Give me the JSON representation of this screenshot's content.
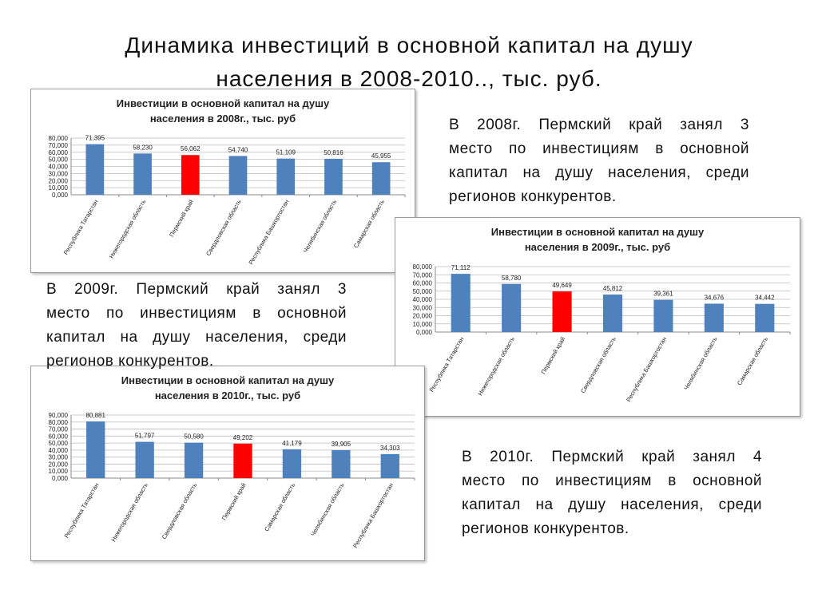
{
  "title": {
    "line1": "Динамика инвестиций в основной капитал на душу",
    "line2": "населения в 2008-2010.., тыс. руб."
  },
  "chart_data": [
    {
      "type": "bar",
      "title_line1": "Инвестиции в основной капитал на душу",
      "title_line2": "населения в 2008г., тыс. руб",
      "categories": [
        "Республика Татарстан",
        "Нижегородская область",
        "Пермский край",
        "Свердловская область",
        "Республика Башкортостан",
        "Челябинская область",
        "Самарская область"
      ],
      "values": [
        71.395,
        58.23,
        56.062,
        54.74,
        51.109,
        50.816,
        45.955
      ],
      "value_labels": [
        "71,395",
        "58,230",
        "56,062",
        "54,740",
        "51,109",
        "50,816",
        "45,955"
      ],
      "yticks": [
        "0,000",
        "10,000",
        "20,000",
        "30,000",
        "40,000",
        "50,000",
        "60,000",
        "70,000",
        "80,000"
      ],
      "ylim": [
        0,
        80
      ],
      "grid": true,
      "highlight_index": 2,
      "bar_color": "#4f81bd",
      "highlight_color": "#ff0000"
    },
    {
      "type": "bar",
      "title_line1": "Инвестиции в основной капитал на душу",
      "title_line2": "населения в 2009г., тыс. руб",
      "categories": [
        "Республика Татарстан",
        "Нижегородская область",
        "Пермский край",
        "Свердловская область",
        "Республика Башкортостан",
        "Челябинская область",
        "Самарская область"
      ],
      "values": [
        71.112,
        58.78,
        49.649,
        45.812,
        39.361,
        34.676,
        34.442
      ],
      "value_labels": [
        "71,112",
        "58,780",
        "49,649",
        "45,812",
        "39,361",
        "34,676",
        "34,442"
      ],
      "yticks": [
        "0,000",
        "10,000",
        "20,000",
        "30,000",
        "40,000",
        "50,000",
        "60,000",
        "70,000",
        "80,000"
      ],
      "ylim": [
        0,
        80
      ],
      "grid": true,
      "highlight_index": 2,
      "bar_color": "#4f81bd",
      "highlight_color": "#ff0000"
    },
    {
      "type": "bar",
      "title_line1": "Инвестиции в основной капитал на душу",
      "title_line2": "населения в 2010г., тыс. руб",
      "categories": [
        "Республика Татарстан",
        "Нижегородская область",
        "Свердловская область",
        "Пермский край",
        "Самарская область",
        "Челябинская область",
        "Республика Башкортостан"
      ],
      "values": [
        80.881,
        51.797,
        50.58,
        49.202,
        41.179,
        39.905,
        34.303
      ],
      "value_labels": [
        "80,881",
        "51,797",
        "50,580",
        "49,202",
        "41,179",
        "39,905",
        "34,303"
      ],
      "yticks": [
        "0,000",
        "10,000",
        "20,000",
        "30,000",
        "40,000",
        "50,000",
        "60,000",
        "70,000",
        "80,000",
        "90,000"
      ],
      "ylim": [
        0,
        90
      ],
      "grid": true,
      "highlight_index": 3,
      "bar_color": "#4f81bd",
      "highlight_color": "#ff0000"
    }
  ],
  "notes": [
    {
      "line1": "В 2008г. Пермский край занял 3",
      "line2": "место по инвестициям в основной",
      "line3": "капитал на душу населения, среди",
      "line4": "регионов конкурентов."
    },
    {
      "line1": "В 2009г. Пермский край занял 3",
      "line2": "место по инвестициям в основной",
      "line3": "капитал на душу населения, среди",
      "line4": "регионов конкурентов."
    },
    {
      "line1": "В 2010г. Пермский край занял 4",
      "line2": "место по инвестициям в основной",
      "line3": "капитал на душу населения, среди",
      "line4": "регионов конкурентов."
    }
  ]
}
